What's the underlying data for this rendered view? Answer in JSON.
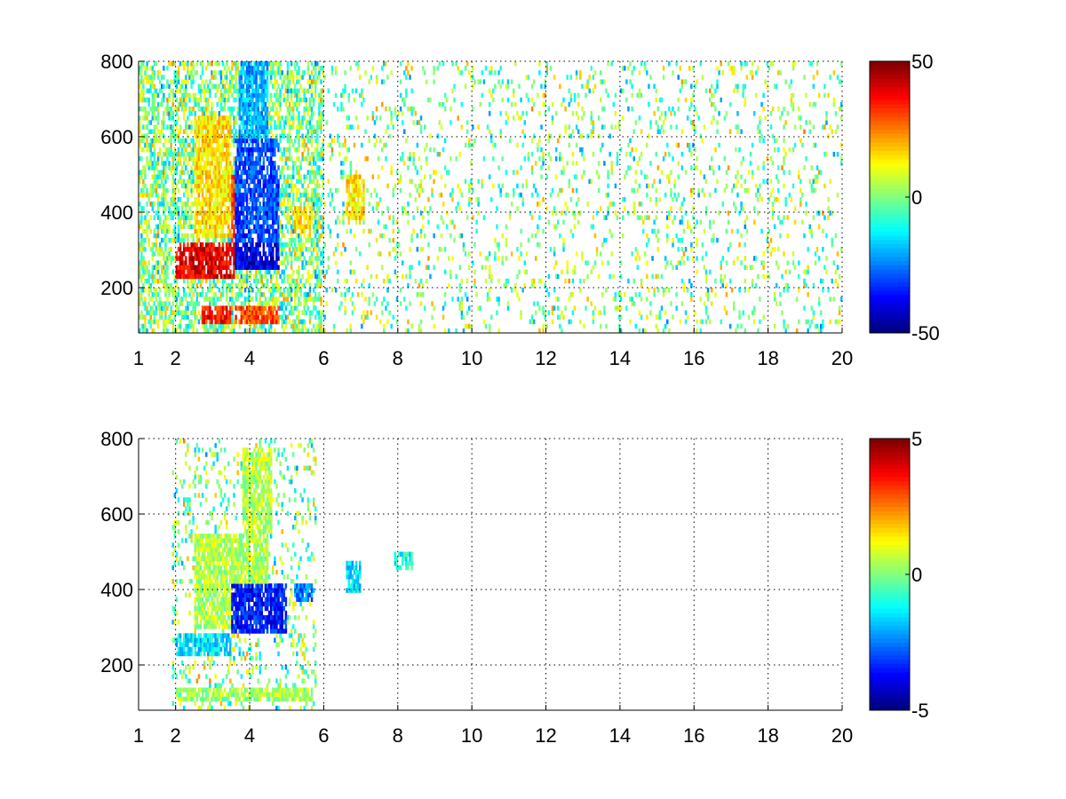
{
  "chart_data": [
    {
      "type": "heatmap",
      "title": "",
      "xlabel": "",
      "ylabel": "",
      "xlim": [
        1,
        20
      ],
      "ylim": [
        80,
        800
      ],
      "x_ticks": [
        1,
        2,
        4,
        6,
        8,
        10,
        12,
        14,
        16,
        18,
        20
      ],
      "y_ticks": [
        200,
        400,
        600,
        800
      ],
      "grid": true,
      "colormap": "jet",
      "colorbar": {
        "range": [
          -50,
          50
        ],
        "ticks": [
          -50,
          0,
          50
        ]
      },
      "nan_color": "#ffffff",
      "features": [
        {
          "x": [
            2.0,
            3.6
          ],
          "y": [
            230,
            320
          ],
          "value": 40
        },
        {
          "x": [
            3.6,
            4.8
          ],
          "y": [
            250,
            320
          ],
          "value": -40
        },
        {
          "x": [
            3.6,
            4.8
          ],
          "y": [
            320,
            600
          ],
          "value": -30
        },
        {
          "x": [
            3.5,
            4.0
          ],
          "y": [
            320,
            500
          ],
          "value": 30
        },
        {
          "x": [
            2.5,
            3.5
          ],
          "y": [
            330,
            650
          ],
          "value": 15
        },
        {
          "x": [
            3.7,
            4.5
          ],
          "y": [
            500,
            800
          ],
          "value": -20
        },
        {
          "x": [
            2.7,
            3.5
          ],
          "y": [
            100,
            150
          ],
          "value": 35
        },
        {
          "x": [
            3.6,
            4.8
          ],
          "y": [
            100,
            150
          ],
          "value": 30
        },
        {
          "x": [
            6.6,
            7.1
          ],
          "y": [
            380,
            500
          ],
          "value": 15
        },
        {
          "x": [
            5.2,
            5.7
          ],
          "y": [
            350,
            420
          ],
          "value": 15
        }
      ]
    },
    {
      "type": "heatmap",
      "title": "",
      "xlabel": "",
      "ylabel": "",
      "xlim": [
        1,
        20
      ],
      "ylim": [
        80,
        800
      ],
      "x_ticks": [
        1,
        2,
        4,
        6,
        8,
        10,
        12,
        14,
        16,
        18,
        20
      ],
      "y_ticks": [
        200,
        400,
        600,
        800
      ],
      "grid": true,
      "colormap": "jet",
      "colorbar": {
        "range": [
          -5,
          5
        ],
        "ticks": [
          -5,
          0,
          5
        ]
      },
      "nan_color": "#ffffff",
      "features": [
        {
          "x": [
            2.0,
            3.5
          ],
          "y": [
            220,
            280
          ],
          "value": -1.5
        },
        {
          "x": [
            3.5,
            5.0
          ],
          "y": [
            280,
            420
          ],
          "value": -3.5
        },
        {
          "x": [
            2.5,
            4.5
          ],
          "y": [
            300,
            550
          ],
          "value": 0.5
        },
        {
          "x": [
            3.8,
            4.6
          ],
          "y": [
            550,
            780
          ],
          "value": 0.5
        },
        {
          "x": [
            2.0,
            5.7
          ],
          "y": [
            100,
            140
          ],
          "value": 0.3
        },
        {
          "x": [
            5.2,
            5.7
          ],
          "y": [
            370,
            420
          ],
          "value": -2.5
        },
        {
          "x": [
            6.6,
            7.0
          ],
          "y": [
            390,
            470
          ],
          "value": -1.5
        },
        {
          "x": [
            7.9,
            8.4
          ],
          "y": [
            450,
            500
          ],
          "value": -1.0
        }
      ]
    }
  ]
}
